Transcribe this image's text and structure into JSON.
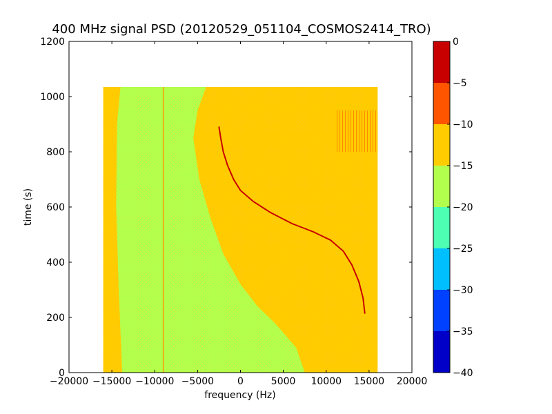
{
  "chart_data": {
    "type": "heatmap",
    "title": "400 MHz signal PSD (20120529_051104_COSMOS2414_TRO)",
    "xlabel": "frequency (Hz)",
    "ylabel": "time (s)",
    "xlim": [
      -20000,
      20000
    ],
    "ylim": [
      0,
      1200
    ],
    "xticks": [
      -20000,
      -15000,
      -10000,
      -5000,
      0,
      5000,
      10000,
      15000,
      20000
    ],
    "xtick_labels": [
      "−20000",
      "−15000",
      "−10000",
      "−5000",
      "0",
      "5000",
      "10000",
      "15000",
      "20000"
    ],
    "yticks": [
      0,
      200,
      400,
      600,
      800,
      1000,
      1200
    ],
    "ytick_labels": [
      "0",
      "200",
      "400",
      "600",
      "800",
      "1000",
      "1200"
    ],
    "data_extent": {
      "x": [
        -16000,
        16000
      ],
      "y": [
        0,
        1035
      ]
    },
    "grid": false,
    "colorbar": {
      "levels": [
        -40,
        -35,
        -30,
        -25,
        -20,
        -15,
        -10,
        -5,
        0
      ],
      "tick_labels": [
        "−40",
        "−35",
        "−30",
        "−25",
        "−20",
        "−15",
        "−10",
        "−5",
        "0"
      ],
      "colors": [
        "#0000c8",
        "#0040ff",
        "#00bfff",
        "#4dffb3",
        "#b3ff4d",
        "#ffcc00",
        "#ff5500",
        "#c80000"
      ]
    },
    "background_regions": [
      {
        "level_color": "#ffcc00",
        "polygon": [
          [
            -16000,
            0
          ],
          [
            -13800,
            0
          ],
          [
            -14200,
            300
          ],
          [
            -14500,
            600
          ],
          [
            -14400,
            900
          ],
          [
            -14000,
            1035
          ],
          [
            -16000,
            1035
          ]
        ]
      },
      {
        "level_color": "#b3ff4d",
        "polygon": [
          [
            -13800,
            0
          ],
          [
            7500,
            0
          ],
          [
            6500,
            90
          ],
          [
            4000,
            180
          ],
          [
            2000,
            240
          ],
          [
            0,
            320
          ],
          [
            -2000,
            430
          ],
          [
            -3500,
            560
          ],
          [
            -4800,
            700
          ],
          [
            -5500,
            850
          ],
          [
            -5000,
            950
          ],
          [
            -4000,
            1035
          ],
          [
            -14000,
            1035
          ],
          [
            -14400,
            900
          ],
          [
            -14500,
            600
          ],
          [
            -14200,
            300
          ]
        ]
      }
    ],
    "signal_trace": {
      "name": "",
      "points": [
        {
          "x": -2500,
          "y": 890
        },
        {
          "x": -2300,
          "y": 850
        },
        {
          "x": -2000,
          "y": 800
        },
        {
          "x": -1500,
          "y": 750
        },
        {
          "x": -800,
          "y": 700
        },
        {
          "x": 0,
          "y": 660
        },
        {
          "x": 1500,
          "y": 620
        },
        {
          "x": 3500,
          "y": 580
        },
        {
          "x": 6000,
          "y": 540
        },
        {
          "x": 8500,
          "y": 510
        },
        {
          "x": 10500,
          "y": 480
        },
        {
          "x": 12000,
          "y": 440
        },
        {
          "x": 13000,
          "y": 390
        },
        {
          "x": 13800,
          "y": 330
        },
        {
          "x": 14300,
          "y": 270
        },
        {
          "x": 14500,
          "y": 215
        }
      ]
    },
    "vertical_lines": [
      {
        "x": -9000,
        "y": [
          0,
          1035
        ]
      }
    ],
    "hot_region": {
      "x": [
        11000,
        16000
      ],
      "y": [
        800,
        950
      ]
    }
  }
}
